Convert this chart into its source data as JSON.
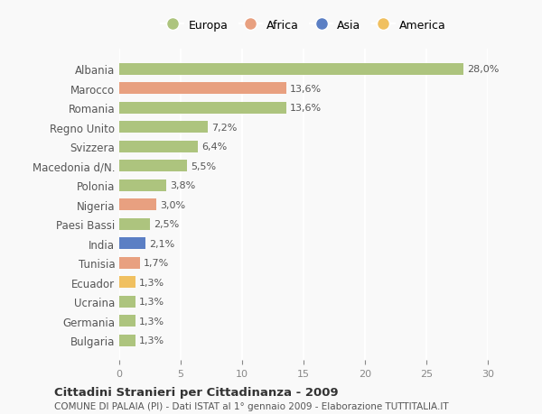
{
  "countries": [
    "Albania",
    "Marocco",
    "Romania",
    "Regno Unito",
    "Svizzera",
    "Macedonia d/N.",
    "Polonia",
    "Nigeria",
    "Paesi Bassi",
    "India",
    "Tunisia",
    "Ecuador",
    "Ucraina",
    "Germania",
    "Bulgaria"
  ],
  "values": [
    28.0,
    13.6,
    13.6,
    7.2,
    6.4,
    5.5,
    3.8,
    3.0,
    2.5,
    2.1,
    1.7,
    1.3,
    1.3,
    1.3,
    1.3
  ],
  "labels": [
    "28,0%",
    "13,6%",
    "13,6%",
    "7,2%",
    "6,4%",
    "5,5%",
    "3,8%",
    "3,0%",
    "2,5%",
    "2,1%",
    "1,7%",
    "1,3%",
    "1,3%",
    "1,3%",
    "1,3%"
  ],
  "continents": [
    "Europa",
    "Africa",
    "Europa",
    "Europa",
    "Europa",
    "Europa",
    "Europa",
    "Africa",
    "Europa",
    "Asia",
    "Africa",
    "America",
    "Europa",
    "Europa",
    "Europa"
  ],
  "continent_colors": {
    "Europa": "#adc47e",
    "Africa": "#e8a080",
    "Asia": "#5b7fc4",
    "America": "#f0c060"
  },
  "legend_items": [
    "Europa",
    "Africa",
    "Asia",
    "America"
  ],
  "title": "Cittadini Stranieri per Cittadinanza - 2009",
  "subtitle": "COMUNE DI PALAIA (PI) - Dati ISTAT al 1° gennaio 2009 - Elaborazione TUTTITALIA.IT",
  "xlim": [
    0,
    30
  ],
  "xticks": [
    0,
    5,
    10,
    15,
    20,
    25,
    30
  ],
  "background_color": "#f9f9f9",
  "grid_color": "#ffffff",
  "bar_height": 0.6
}
